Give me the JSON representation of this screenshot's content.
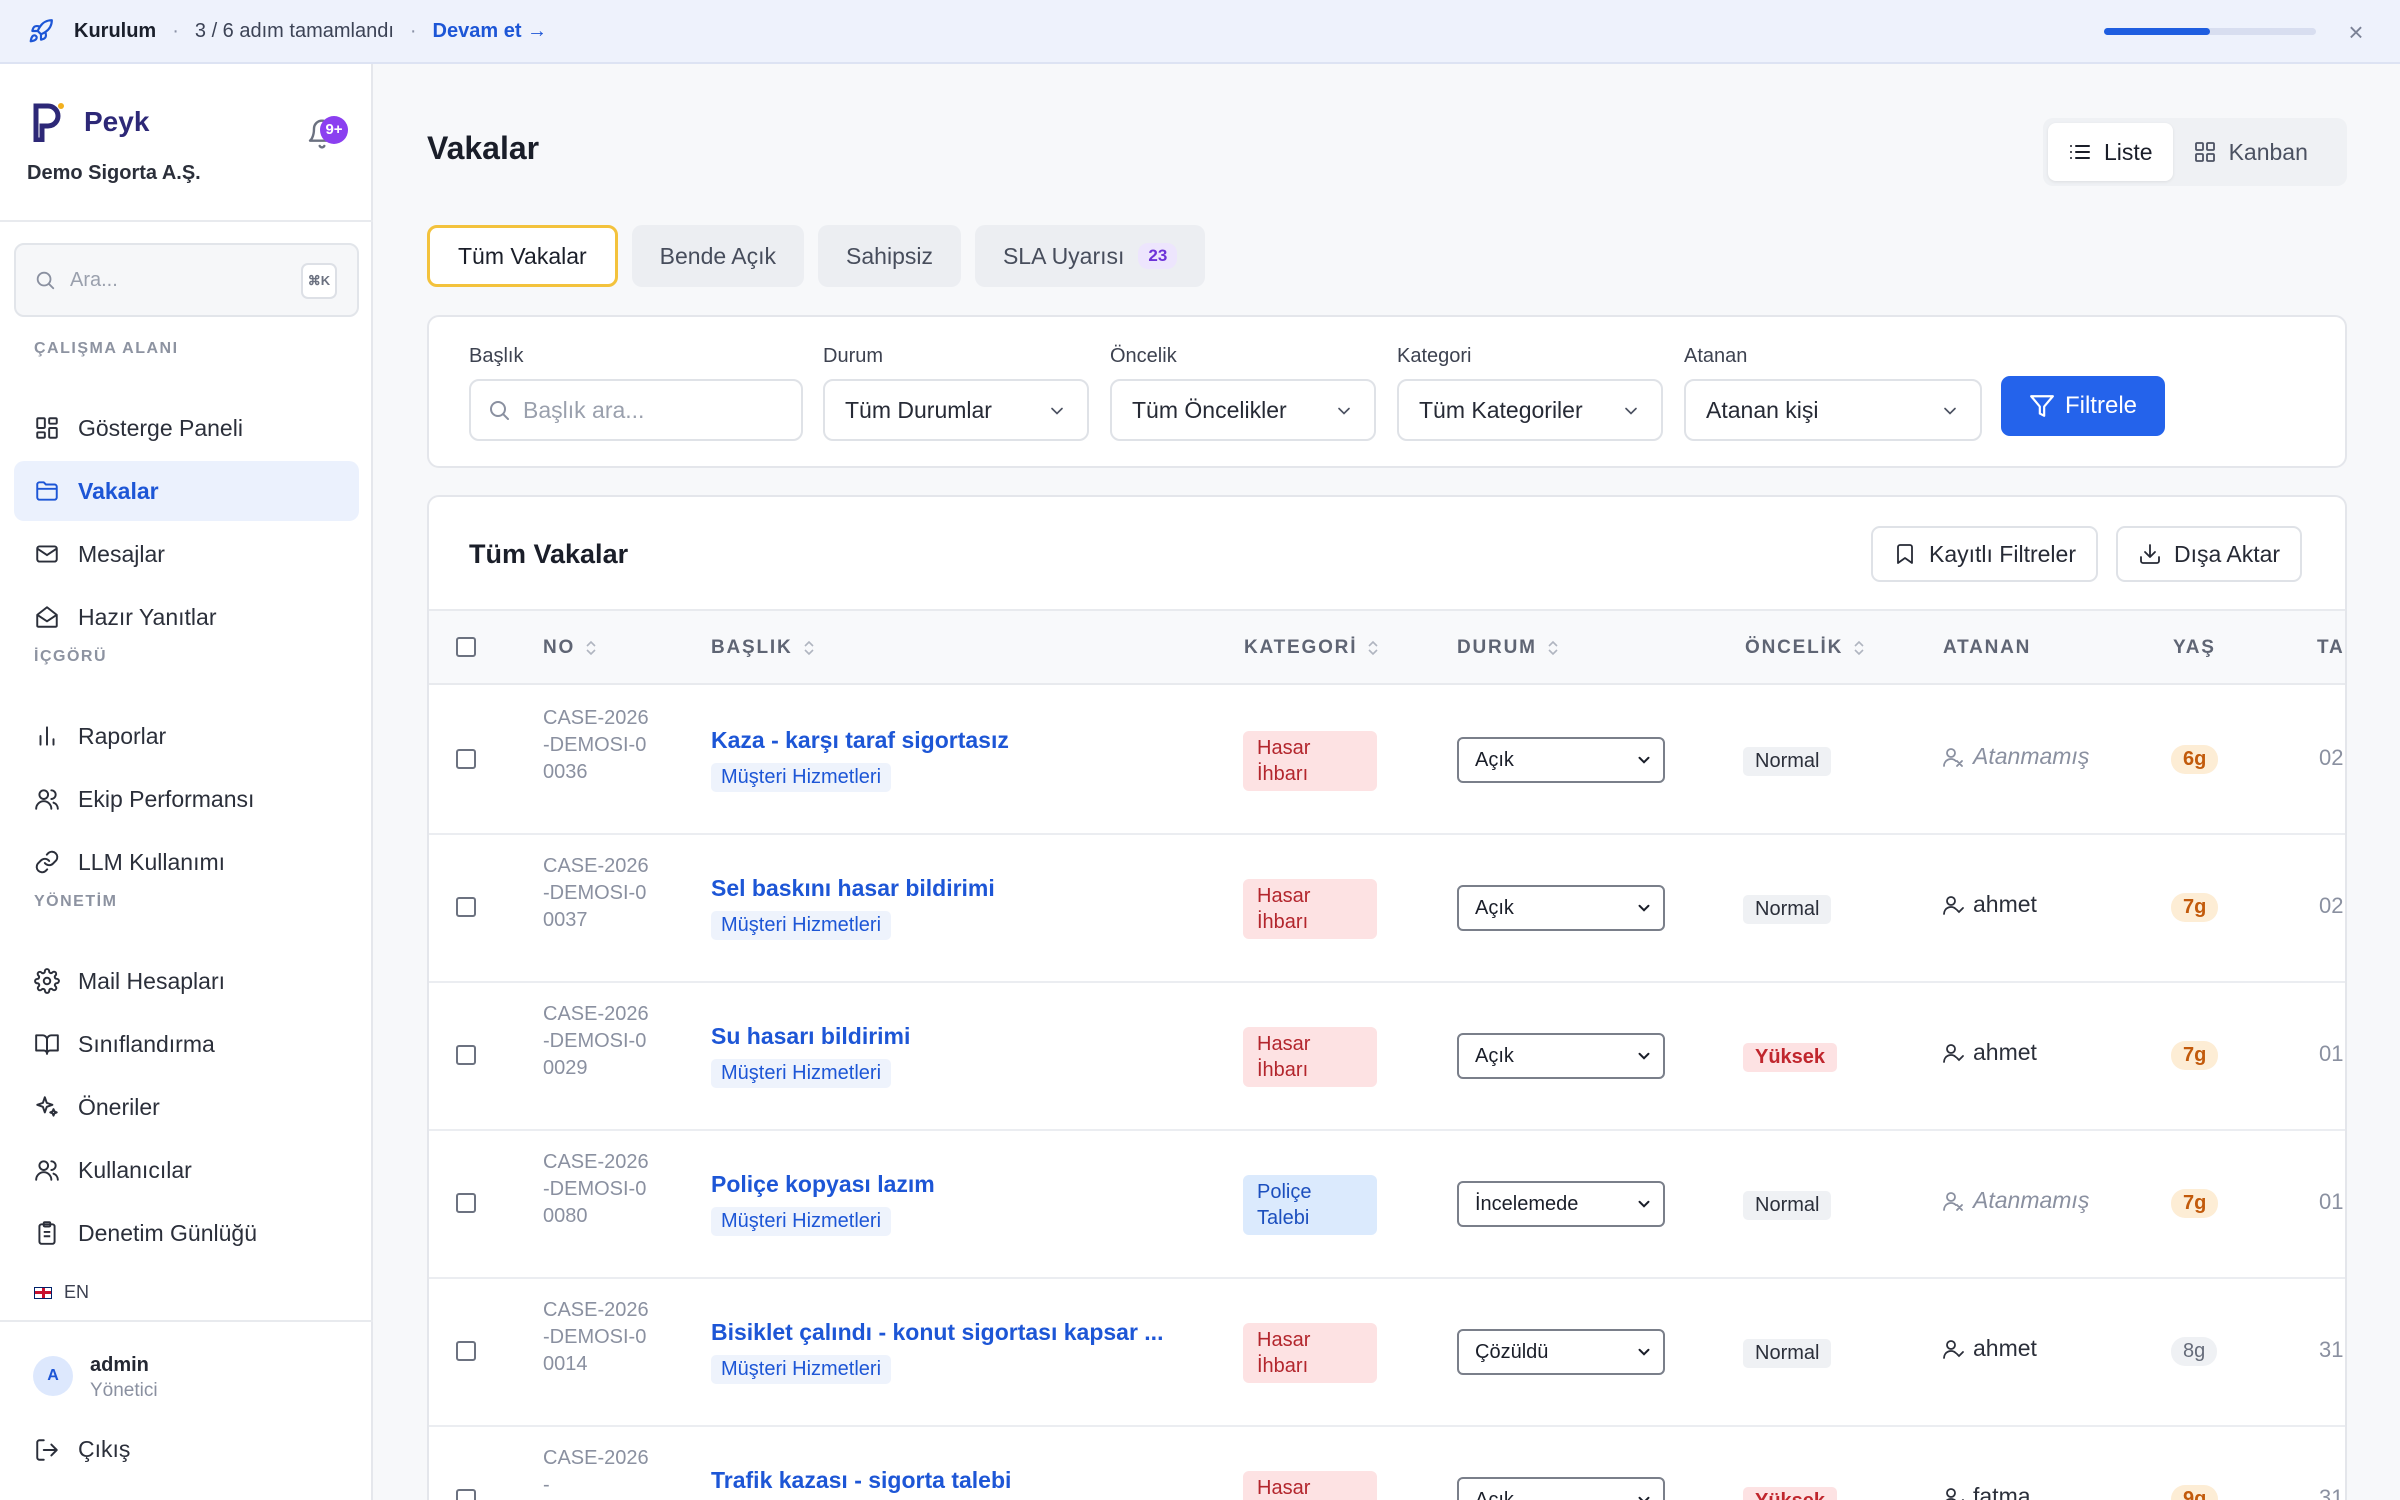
{
  "setup": {
    "title": "Kurulum",
    "steps": "3 / 6 adım tamamlandı",
    "continue": "Devam et →",
    "progress": 0.5,
    "close": "×"
  },
  "sidebar": {
    "brand": "Peyk",
    "org": "Demo Sigorta A.Ş.",
    "notifications": "9+",
    "search_placeholder": "Ara...",
    "search_shortcut": "⌘K",
    "sections": [
      "ÇALIŞMA ALANI",
      "İÇGÖRÜ",
      "YÖNETİM"
    ],
    "items": [
      {
        "label": "Gösterge Paneli",
        "icon": "grid-icon"
      },
      {
        "label": "Vakalar",
        "icon": "folder-icon",
        "active": true
      },
      {
        "label": "Mesajlar",
        "icon": "mail-icon"
      },
      {
        "label": "Hazır Yanıtlar",
        "icon": "inbox-icon"
      },
      {
        "label": "Raporlar",
        "icon": "bar-chart-icon"
      },
      {
        "label": "Ekip Performansı",
        "icon": "users-icon"
      },
      {
        "label": "LLM Kullanımı",
        "icon": "link-icon"
      },
      {
        "label": "Mail Hesapları",
        "icon": "gear-icon"
      },
      {
        "label": "Sınıflandırma",
        "icon": "book-icon"
      },
      {
        "label": "Öneriler",
        "icon": "sparkles-icon"
      },
      {
        "label": "Kullanıcılar",
        "icon": "users-icon"
      },
      {
        "label": "Denetim Günlüğü",
        "icon": "clipboard-icon"
      }
    ],
    "language": "EN",
    "user": {
      "initial": "A",
      "name": "admin",
      "role": "Yönetici"
    },
    "logout": "Çıkış"
  },
  "page": {
    "title": "Vakalar",
    "views": [
      "Liste",
      "Kanban"
    ]
  },
  "tabs": [
    {
      "label": "Tüm Vakalar",
      "active": true
    },
    {
      "label": "Bende Açık"
    },
    {
      "label": "Sahipsiz"
    },
    {
      "label": "SLA Uyarısı",
      "count": "23"
    }
  ],
  "filters": {
    "title_label": "Başlık",
    "title_placeholder": "Başlık ara...",
    "status_label": "Durum",
    "status_value": "Tüm Durumlar",
    "priority_label": "Öncelik",
    "priority_value": "Tüm Öncelikler",
    "category_label": "Kategori",
    "category_value": "Tüm Kategoriler",
    "assignee_label": "Atanan",
    "assignee_value": "Atanan kişi",
    "apply": "Filtrele"
  },
  "table": {
    "title": "Tüm Vakalar",
    "saved_filters": "Kayıtlı Filtreler",
    "export": "Dışa Aktar",
    "columns": [
      "NO",
      "BAŞLIK",
      "KATEGORİ",
      "DURUM",
      "ÖNCELİK",
      "ATANAN",
      "YAŞ",
      "TA"
    ],
    "rows": [
      {
        "no": "CASE-2026-DEMOSI-00036",
        "title": "Kaza - karşı taraf sigortasız",
        "team": "Müşteri Hizmetleri",
        "category": "Hasar İhbarı",
        "category_color": "#fde2e3",
        "status": "Açık",
        "priority": "Normal",
        "assignee": "Atanmamış",
        "unassigned": true,
        "age": "6g",
        "age_warn": true,
        "date": "02"
      },
      {
        "no": "CASE-2026-DEMOSI-00037",
        "title": "Sel baskını hasar bildirimi",
        "team": "Müşteri Hizmetleri",
        "category": "Hasar İhbarı",
        "category_color": "#fde2e3",
        "status": "Açık",
        "priority": "Normal",
        "assignee": "ahmet",
        "unassigned": false,
        "age": "7g",
        "age_warn": true,
        "date": "02"
      },
      {
        "no": "CASE-2026-DEMOSI-00029",
        "title": "Su hasarı bildirimi",
        "team": "Müşteri Hizmetleri",
        "category": "Hasar İhbarı",
        "category_color": "#fde2e3",
        "status": "Açık",
        "priority": "Yüksek",
        "priority_high": true,
        "assignee": "ahmet",
        "unassigned": false,
        "age": "7g",
        "age_warn": true,
        "date": "01."
      },
      {
        "no": "CASE-2026-DEMOSI-00080",
        "title": "Poliçe kopyası lazım",
        "team": "Müşteri Hizmetleri",
        "category": "Poliçe Talebi",
        "category_color": "#dbeafd",
        "status": "İncelemede",
        "priority": "Normal",
        "assignee": "Atanmamış",
        "unassigned": true,
        "age": "7g",
        "age_warn": true,
        "date": "01."
      },
      {
        "no": "CASE-2026-DEMOSI-00014",
        "title": "Bisiklet çalındı - konut sigortası kapsar ...",
        "team": "Müşteri Hizmetleri",
        "category": "Hasar İhbarı",
        "category_color": "#fde2e3",
        "status": "Çözüldü",
        "priority": "Normal",
        "assignee": "ahmet",
        "unassigned": false,
        "age": "8g",
        "age_warn": false,
        "date": "31."
      },
      {
        "no": "CASE-2026-",
        "title": "Trafik kazası - sigorta talebi",
        "team": "",
        "category": "Hasar",
        "category_color": "#fde2e3",
        "status": "Açık",
        "priority": "Yüksek",
        "priority_high": true,
        "assignee": "fatma",
        "unassigned": false,
        "age": "9g",
        "age_warn": true,
        "date": "31."
      }
    ]
  }
}
